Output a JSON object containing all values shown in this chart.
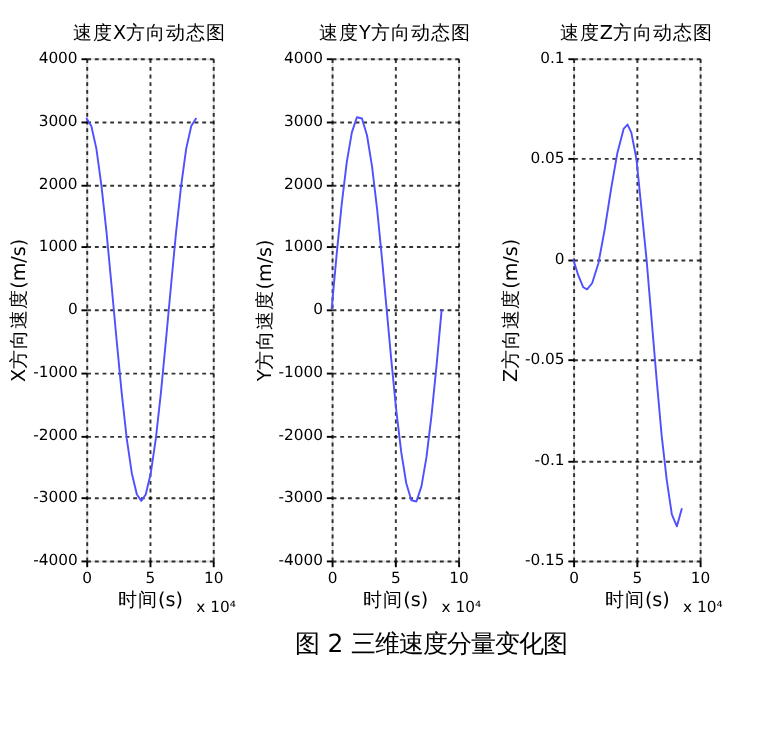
{
  "chart_data": [
    {
      "type": "line",
      "title": "速度X方向动态图",
      "xlabel": "时间(s)",
      "ylabel": "X方向速度(m/s)",
      "annotations": [
        "x 10⁴"
      ],
      "xlim": [
        0,
        10
      ],
      "xticks": [
        0,
        5,
        10
      ],
      "ylim": [
        -4000,
        4000
      ],
      "yticks": [
        -4000,
        -3000,
        -2000,
        -1000,
        0,
        1000,
        2000,
        3000,
        4000
      ],
      "grid": true,
      "line_style": "solid",
      "series": [
        {
          "color": "#5050ff",
          "x": [
            0,
            0.4,
            0.8,
            1.2,
            1.6,
            2.0,
            2.4,
            2.8,
            3.2,
            3.6,
            4.0,
            4.35,
            4.7,
            5.1,
            5.5,
            5.9,
            6.3,
            6.7,
            7.1,
            7.5,
            7.9,
            8.3,
            8.7
          ],
          "values": [
            3050,
            2920,
            2560,
            1970,
            1230,
            380,
            -490,
            -1330,
            -2060,
            -2610,
            -2950,
            -3050,
            -2950,
            -2610,
            -2060,
            -1330,
            -490,
            380,
            1230,
            1970,
            2560,
            2920,
            3050
          ]
        }
      ]
    },
    {
      "type": "line",
      "title": "速度Y方向动态图",
      "xlabel": "时间(s)",
      "ylabel": "Y方向速度(m/s)",
      "annotations": [
        "x 10⁴"
      ],
      "xlim": [
        0,
        10
      ],
      "xticks": [
        0,
        5,
        10
      ],
      "ylim": [
        -4000,
        4000
      ],
      "yticks": [
        -4000,
        -3000,
        -2000,
        -1000,
        0,
        1000,
        2000,
        3000,
        4000
      ],
      "grid": true,
      "line_style": "solid",
      "series": [
        {
          "color": "#5050ff",
          "x": [
            0,
            0.4,
            0.8,
            1.2,
            1.6,
            2.0,
            2.4,
            2.8,
            3.2,
            3.6,
            4.0,
            4.35,
            4.7,
            5.1,
            5.5,
            5.9,
            6.3,
            6.7,
            7.1,
            7.5,
            7.9,
            8.3,
            8.7
          ],
          "values": [
            0,
            880,
            1680,
            2350,
            2820,
            3060,
            3040,
            2770,
            2270,
            1590,
            770,
            0,
            -770,
            -1590,
            -2270,
            -2770,
            -3040,
            -3060,
            -2820,
            -2350,
            -1680,
            -880,
            0
          ]
        }
      ]
    },
    {
      "type": "line",
      "title": "速度Z方向动态图",
      "xlabel": "时间(s)",
      "ylabel": "Z方向速度(m/s)",
      "annotations": [
        "x 10⁴",
        "图 2 三维速度分量变化图"
      ],
      "xlim": [
        0,
        10
      ],
      "xticks": [
        0,
        5,
        10
      ],
      "ylim": [
        -0.15,
        0.1
      ],
      "yticks": [
        -0.15,
        -0.1,
        -0.05,
        0,
        0.05,
        0.1
      ],
      "grid": true,
      "line_style": "solid",
      "series": [
        {
          "color": "#5050ff",
          "x": [
            0,
            0.4,
            0.8,
            1.1,
            1.5,
            2.0,
            2.5,
            3.0,
            3.5,
            4.0,
            4.3,
            4.6,
            5.0,
            5.4,
            5.8,
            6.2,
            6.6,
            7.0,
            7.4,
            7.8,
            8.2,
            8.6
          ],
          "values": [
            0,
            -0.008,
            -0.014,
            -0.015,
            -0.012,
            -0.002,
            0.015,
            0.035,
            0.053,
            0.065,
            0.067,
            0.063,
            0.05,
            0.025,
            0,
            -0.03,
            -0.06,
            -0.088,
            -0.11,
            -0.127,
            -0.133,
            -0.124
          ]
        }
      ]
    }
  ]
}
